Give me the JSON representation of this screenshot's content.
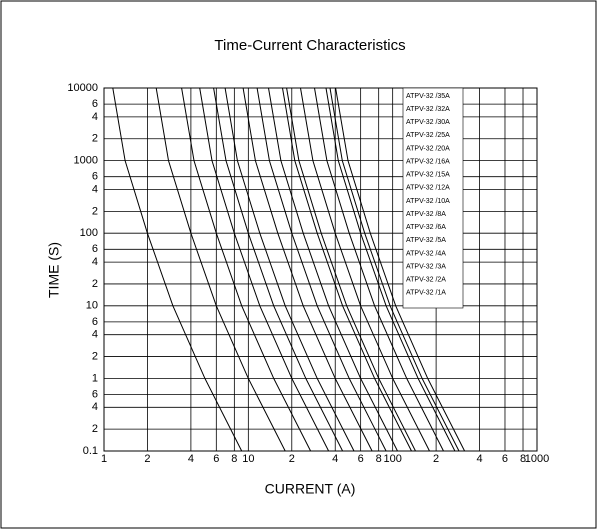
{
  "chart_data": {
    "type": "line",
    "title": "Time-Current Characteristics",
    "x_label": "CURRENT (A)",
    "y_label": "TIME (S)",
    "log_x": true,
    "log_y": true,
    "grid": true,
    "legend": "upper right",
    "color": "#000000",
    "xlim": [
      1,
      1000
    ],
    "ylim": [
      0.1,
      10000
    ],
    "xticks": [
      1,
      2,
      4,
      6,
      8,
      10,
      {
        "value": 20,
        "label": "2"
      },
      {
        "value": 40,
        "label": "4"
      },
      {
        "value": 60,
        "label": "6"
      },
      {
        "value": 80,
        "label": "8"
      },
      100,
      {
        "value": 200,
        "label": "2"
      },
      {
        "value": 400,
        "label": "4"
      },
      {
        "value": 600,
        "label": "6"
      },
      {
        "value": 800,
        "label": "8"
      },
      1000
    ],
    "yticks": [
      0.1,
      {
        "value": 0.2,
        "label": "2"
      },
      {
        "value": 0.4,
        "label": "4"
      },
      {
        "value": 0.6,
        "label": "6"
      },
      1,
      {
        "value": 2,
        "label": "2"
      },
      {
        "value": 4,
        "label": "4"
      },
      {
        "value": 6,
        "label": "6"
      },
      10,
      {
        "value": 20,
        "label": "2"
      },
      {
        "value": 40,
        "label": "4"
      },
      {
        "value": 60,
        "label": "6"
      },
      100,
      {
        "value": 200,
        "label": "2"
      },
      {
        "value": 400,
        "label": "4"
      },
      {
        "value": 600,
        "label": "6"
      },
      1000,
      {
        "value": 2000,
        "label": "2"
      },
      {
        "value": 4000,
        "label": "4"
      },
      {
        "value": 6000,
        "label": "6"
      },
      10000
    ],
    "series": [
      {
        "name": "ATPV-32 /35A",
        "x": [
          40.25,
          49,
          70,
          105,
          175,
          315
        ],
        "values": [
          10000,
          1000,
          100,
          10,
          1,
          0.1
        ]
      },
      {
        "name": "ATPV-32 /32A",
        "x": [
          36.8,
          44.8,
          64,
          96,
          160,
          288
        ],
        "values": [
          10000,
          1000,
          100,
          10,
          1,
          0.1
        ]
      },
      {
        "name": "ATPV-32 /30A",
        "x": [
          34.5,
          42,
          60,
          90,
          150,
          270
        ],
        "values": [
          10000,
          1000,
          100,
          10,
          1,
          0.1
        ]
      },
      {
        "name": "ATPV-32 /25A",
        "x": [
          28.75,
          35,
          50,
          75,
          125,
          225
        ],
        "values": [
          10000,
          1000,
          100,
          10,
          1,
          0.1
        ]
      },
      {
        "name": "ATPV-32 /20A",
        "x": [
          23,
          28,
          40,
          60,
          100,
          180
        ],
        "values": [
          10000,
          1000,
          100,
          10,
          1,
          0.1
        ]
      },
      {
        "name": "ATPV-32 /16A",
        "x": [
          18.4,
          22.4,
          32,
          48,
          80,
          144
        ],
        "values": [
          10000,
          1000,
          100,
          10,
          1,
          0.1
        ]
      },
      {
        "name": "ATPV-32 /15A",
        "x": [
          17.25,
          21,
          30,
          45,
          75,
          135
        ],
        "values": [
          10000,
          1000,
          100,
          10,
          1,
          0.1
        ]
      },
      {
        "name": "ATPV-32 /12A",
        "x": [
          13.8,
          16.8,
          24,
          36,
          60,
          108
        ],
        "values": [
          10000,
          1000,
          100,
          10,
          1,
          0.1
        ]
      },
      {
        "name": "ATPV-32 /10A",
        "x": [
          11.5,
          14,
          20,
          30,
          50,
          90
        ],
        "values": [
          10000,
          1000,
          100,
          10,
          1,
          0.1
        ]
      },
      {
        "name": "ATPV-32 /8A",
        "x": [
          9.2,
          11.2,
          16,
          24,
          40,
          72
        ],
        "values": [
          10000,
          1000,
          100,
          10,
          1,
          0.1
        ]
      },
      {
        "name": "ATPV-32 /6A",
        "x": [
          6.9,
          8.4,
          12,
          18,
          30,
          54
        ],
        "values": [
          10000,
          1000,
          100,
          10,
          1,
          0.1
        ]
      },
      {
        "name": "ATPV-32 /5A",
        "x": [
          5.75,
          7,
          10,
          15,
          25,
          45
        ],
        "values": [
          10000,
          1000,
          100,
          10,
          1,
          0.1
        ]
      },
      {
        "name": "ATPV-32 /4A",
        "x": [
          4.6,
          5.6,
          8,
          12,
          20,
          36
        ],
        "values": [
          10000,
          1000,
          100,
          10,
          1,
          0.1
        ]
      },
      {
        "name": "ATPV-32 /3A",
        "x": [
          3.45,
          4.2,
          6,
          9,
          15,
          27
        ],
        "values": [
          10000,
          1000,
          100,
          10,
          1,
          0.1
        ]
      },
      {
        "name": "ATPV-32 /2A",
        "x": [
          2.3,
          2.8,
          4,
          6,
          10,
          18
        ],
        "values": [
          10000,
          1000,
          100,
          10,
          1,
          0.1
        ]
      },
      {
        "name": "ATPV-32 /1A",
        "x": [
          1.15,
          1.4,
          2,
          3,
          5,
          9
        ],
        "values": [
          10000,
          1000,
          100,
          10,
          1,
          0.1
        ]
      }
    ]
  }
}
